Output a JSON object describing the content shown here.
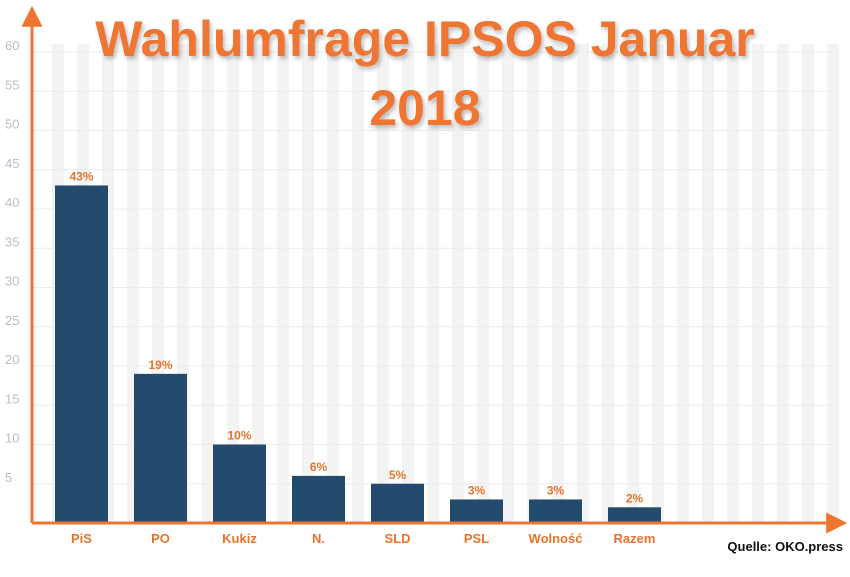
{
  "chart_data": {
    "type": "bar",
    "title_lines": [
      "Wahlumfrage IPSOS Januar",
      "2018"
    ],
    "source": "Quelle: OKO.press",
    "categories": [
      "PiS",
      "PO",
      "Kukiz",
      "N.",
      "SLD",
      "PSL",
      "Wolność",
      "Razem"
    ],
    "values": [
      43,
      19,
      10,
      6,
      5,
      3,
      3,
      2
    ],
    "value_labels": [
      "43%",
      "19%",
      "10%",
      "6%",
      "5%",
      "3%",
      "3%",
      "2%"
    ],
    "yticks": [
      "5",
      "10",
      "15",
      "20",
      "25",
      "30",
      "35",
      "40",
      "45",
      "50",
      "55",
      "60"
    ],
    "ylim": [
      0,
      60
    ],
    "grid": true,
    "colors": {
      "bar": "#234b6e",
      "accent": "#ee7430",
      "grid": "#ececec",
      "stripe": "#f3f3f3"
    }
  }
}
